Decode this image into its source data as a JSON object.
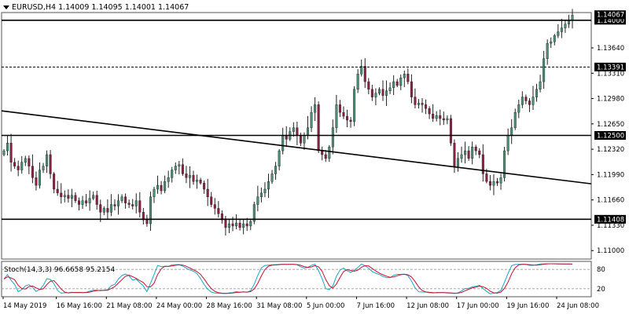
{
  "header": {
    "menu_icon": "triangle-down-icon",
    "symbol": "EURUSD,H4",
    "ohlc": "1.14009 1.14095 1.14001 1.14067"
  },
  "indicator": {
    "label": "Stoch(14,3,3) 96.6658 95.2154",
    "levels": [
      "80",
      "20"
    ]
  },
  "colors": {
    "bull": "#4a8f75",
    "bear": "#8c1f45",
    "stoch_main": "#1aa7c7",
    "stoch_signal": "#c8102e"
  },
  "chart_data": {
    "type": "candlestick",
    "y_range": [
      1.1089,
      1.141
    ],
    "y_ticks": [
      "1.13640",
      "1.13310",
      "1.12980",
      "1.12650",
      "1.12320",
      "1.11990",
      "1.11660",
      "1.11330",
      "1.11000"
    ],
    "x_ticks": [
      "14 May 2019",
      "16 May 16:00",
      "21 May 08:00",
      "24 May 00:00",
      "28 May 16:00",
      "31 May 08:00",
      "5 Jun 00:00",
      "7 Jun 16:00",
      "12 Jun 08:00",
      "17 Jun 00:00",
      "19 Jun 16:00",
      "24 Jun 08:00"
    ],
    "current_price": "1.14067",
    "horizontal_levels": [
      {
        "label": "1.14000",
        "value": 1.14,
        "style": "solid"
      },
      {
        "label": "1.13391",
        "value": 1.13391,
        "style": "dashed"
      },
      {
        "label": "1.12500",
        "value": 1.125,
        "style": "solid"
      },
      {
        "label": "1.11408",
        "value": 1.11408,
        "style": "solid"
      }
    ],
    "trendline": [
      {
        "x": 0,
        "y": 1.1282
      },
      {
        "x": 240,
        "y": 1.1187
      }
    ],
    "closes": [
      1.123,
      1.124,
      1.1215,
      1.121,
      1.1205,
      1.1215,
      1.122,
      1.121,
      1.1195,
      1.1185,
      1.1205,
      1.121,
      1.1225,
      1.12,
      1.118,
      1.1175,
      1.117,
      1.1172,
      1.1168,
      1.1172,
      1.1165,
      1.116,
      1.1165,
      1.1162,
      1.1168,
      1.1172,
      1.116,
      1.115,
      1.1155,
      1.115,
      1.116,
      1.1158,
      1.1165,
      1.117,
      1.1162,
      1.116,
      1.1158,
      1.1165,
      1.115,
      1.114,
      1.1135,
      1.117,
      1.118,
      1.1185,
      1.1178,
      1.119,
      1.1195,
      1.1205,
      1.121,
      1.1212,
      1.12,
      1.1195,
      1.1198,
      1.119,
      1.1192,
      1.1188,
      1.118,
      1.117,
      1.116,
      1.1155,
      1.1148,
      1.114,
      1.113,
      1.1135,
      1.1132,
      1.1136,
      1.113,
      1.1135,
      1.1132,
      1.1138,
      1.116,
      1.117,
      1.1175,
      1.118,
      1.119,
      1.12,
      1.121,
      1.123,
      1.125,
      1.1245,
      1.1255,
      1.126,
      1.125,
      1.124,
      1.125,
      1.126,
      1.128,
      1.129,
      1.123,
      1.1225,
      1.122,
      1.1235,
      1.126,
      1.129,
      1.128,
      1.1275,
      1.127,
      1.1268,
      1.131,
      1.133,
      1.134,
      1.132,
      1.131,
      1.13,
      1.1305,
      1.131,
      1.1302,
      1.1308,
      1.1312,
      1.132,
      1.1315,
      1.1325,
      1.133,
      1.132,
      1.13,
      1.129,
      1.1292,
      1.129,
      1.1285,
      1.1278,
      1.1272,
      1.1276,
      1.1272,
      1.127,
      1.1272,
      1.124,
      1.121,
      1.122,
      1.1225,
      1.123,
      1.122,
      1.1235,
      1.123,
      1.1225,
      1.12,
      1.119,
      1.1185,
      1.119,
      1.1188,
      1.1195,
      1.123,
      1.125,
      1.126,
      1.128,
      1.129,
      1.13,
      1.1295,
      1.129,
      1.13,
      1.131,
      1.132,
      1.135,
      1.137,
      1.1372,
      1.138,
      1.1385,
      1.139,
      1.1395,
      1.14,
      1.14067
    ]
  }
}
